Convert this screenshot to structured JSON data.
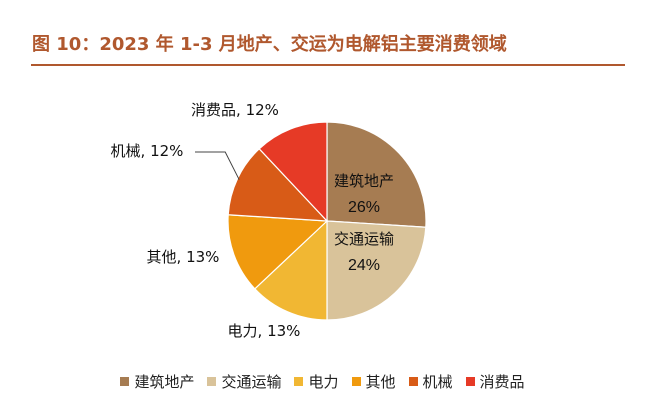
{
  "title": "图 10：2023 年 1-3 月地产、交运为电解铝主要消费领域",
  "chart_data": {
    "type": "pie",
    "title": "图 10：2023 年 1-3 月地产、交运为电解铝主要消费领域",
    "legend_position": "bottom",
    "slices": [
      {
        "name": "建筑地产",
        "value": 26,
        "label": "26%",
        "color": "#a67c52"
      },
      {
        "name": "交通运输",
        "value": 24,
        "label": "24%",
        "color": "#d9c39a"
      },
      {
        "name": "电力",
        "value": 13,
        "label": "电力, 13%",
        "color": "#f1b733"
      },
      {
        "name": "其他",
        "value": 13,
        "label": "其他, 13%",
        "color": "#f09a0e"
      },
      {
        "name": "机械",
        "value": 12,
        "label": "机械, 12%",
        "color": "#d85b17"
      },
      {
        "name": "消费品",
        "value": 12,
        "label": "消费品, 12%",
        "color": "#e63a26"
      }
    ]
  }
}
